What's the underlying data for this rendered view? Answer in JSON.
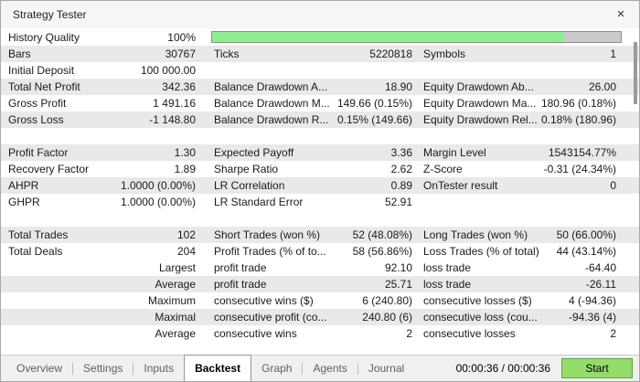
{
  "window": {
    "title": "Strategy Tester",
    "close_icon": "×"
  },
  "progress": {
    "percent": 86,
    "fill_color": "#90ee90",
    "track_color": "#cbcbcb"
  },
  "table": {
    "rows": [
      {
        "c1l": "History Quality",
        "c1v": "100%"
      },
      {
        "c1l": "Bars",
        "c1v": "30767",
        "c2l": "Ticks",
        "c2v": "5220818",
        "c3l": "Symbols",
        "c3v": "1"
      },
      {
        "c1l": "Initial Deposit",
        "c1v": "100 000.00"
      },
      {
        "c1l": "Total Net Profit",
        "c1v": "342.36",
        "c2l": "Balance Drawdown A...",
        "c2v": "18.90",
        "c3l": "Equity Drawdown Ab...",
        "c3v": "26.00"
      },
      {
        "c1l": "Gross Profit",
        "c1v": "1 491.16",
        "c2l": "Balance Drawdown M...",
        "c2v": "149.66 (0.15%)",
        "c3l": "Equity Drawdown Ma...",
        "c3v": "180.96 (0.18%)"
      },
      {
        "c1l": "Gross Loss",
        "c1v": "-1 148.80",
        "c2l": "Balance Drawdown R...",
        "c2v": "0.15% (149.66)",
        "c3l": "Equity Drawdown Rel...",
        "c3v": "0.18% (180.96)"
      },
      {},
      {
        "c1l": "Profit Factor",
        "c1v": "1.30",
        "c2l": "Expected Payoff",
        "c2v": "3.36",
        "c3l": "Margin Level",
        "c3v": "1543154.77%"
      },
      {
        "c1l": "Recovery Factor",
        "c1v": "1.89",
        "c2l": "Sharpe Ratio",
        "c2v": "2.62",
        "c3l": "Z-Score",
        "c3v": "-0.31 (24.34%)"
      },
      {
        "c1l": "AHPR",
        "c1v": "1.0000 (0.00%)",
        "c2l": "LR Correlation",
        "c2v": "0.89",
        "c3l": "OnTester result",
        "c3v": "0"
      },
      {
        "c1l": "GHPR",
        "c1v": "1.0000 (0.00%)",
        "c2l": "LR Standard Error",
        "c2v": "52.91"
      },
      {},
      {
        "c1l": "Total Trades",
        "c1v": "102",
        "c2l": "Short Trades (won %)",
        "c2v": "52 (48.08%)",
        "c3l": "Long Trades (won %)",
        "c3v": "50 (66.00%)"
      },
      {
        "c1l": "Total Deals",
        "c1v": "204",
        "c2l": "Profit Trades (% of to...",
        "c2v": "58 (56.86%)",
        "c3l": "Loss Trades (% of total)",
        "c3v": "44 (43.14%)"
      },
      {
        "c1v": "Largest",
        "c2l": "profit trade",
        "c2v": "92.10",
        "c3l": "loss trade",
        "c3v": "-64.40"
      },
      {
        "c1v": "Average",
        "c2l": "profit trade",
        "c2v": "25.71",
        "c3l": "loss trade",
        "c3v": "-26.11"
      },
      {
        "c1v": "Maximum",
        "c2l": "consecutive wins ($)",
        "c2v": "6 (240.80)",
        "c3l": "consecutive losses ($)",
        "c3v": "4 (-94.36)"
      },
      {
        "c1v": "Maximal",
        "c2l": "consecutive profit (co...",
        "c2v": "240.80 (6)",
        "c3l": "consecutive loss (cou...",
        "c3v": "-94.36 (4)"
      },
      {
        "c1v": "Average",
        "c2l": "consecutive wins",
        "c2v": "2",
        "c3l": "consecutive losses",
        "c3v": "2"
      }
    ]
  },
  "tabs": [
    {
      "label": "Overview",
      "active": false
    },
    {
      "label": "Settings",
      "active": false
    },
    {
      "label": "Inputs",
      "active": false
    },
    {
      "label": "Backtest",
      "active": true
    },
    {
      "label": "Graph",
      "active": false
    },
    {
      "label": "Agents",
      "active": false
    },
    {
      "label": "Journal",
      "active": false
    }
  ],
  "statusbar": {
    "time": "00:00:36 / 00:00:36",
    "start_label": "Start"
  },
  "colors": {
    "progress_fill": "#90ee90",
    "start_button": "#94dd6b",
    "row_shade": "#e9e9e9"
  }
}
